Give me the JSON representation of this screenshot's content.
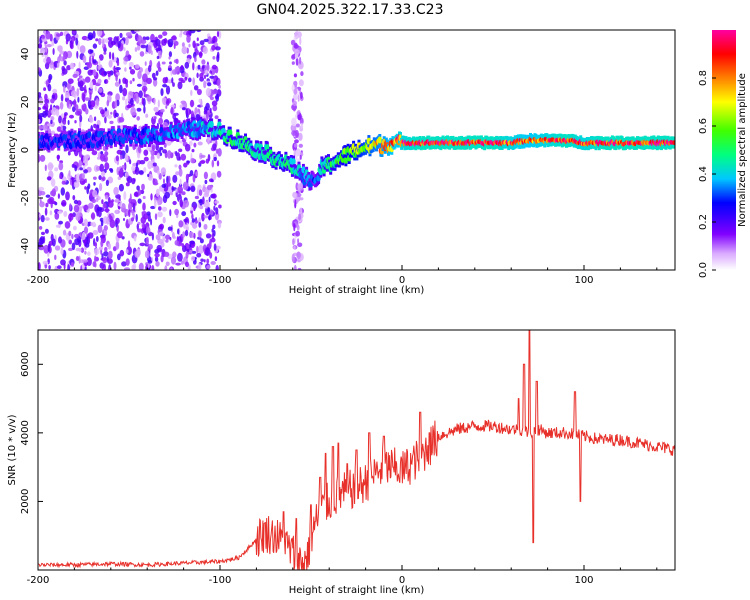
{
  "title": "GN04.2025.322.17.33.C23",
  "chart_data": [
    {
      "type": "heatmap",
      "title": "GN04.2025.322.17.33.C23",
      "xlabel": "Height of straight line (km)",
      "ylabel": "Frequency (Hz)",
      "xlim": [
        -200,
        150
      ],
      "ylim": [
        -50,
        50
      ],
      "xticks": [
        -200,
        -100,
        0,
        100
      ],
      "yticks": [
        -40,
        -20,
        0,
        20,
        40
      ],
      "colorbar": {
        "label": "Normalized spectral amplitude",
        "range": [
          0,
          1
        ],
        "ticks": [
          0.0,
          0.2,
          0.4,
          0.6,
          0.8
        ]
      },
      "ridge": {
        "x": [
          -200,
          -180,
          -160,
          -140,
          -120,
          -110,
          -100,
          -95,
          -90,
          -85,
          -80,
          -75,
          -70,
          -65,
          -60,
          -55,
          -50,
          -48,
          -45,
          -40,
          -35,
          -30,
          -25,
          -20,
          -15,
          -10,
          -5,
          0,
          10,
          30,
          50,
          60,
          70,
          80,
          90,
          100,
          110,
          120,
          150
        ],
        "y": [
          3,
          4,
          5,
          6,
          8,
          9,
          8,
          6,
          4,
          2,
          0,
          -1,
          -3,
          -5,
          -7,
          -10,
          -13,
          -15,
          -8,
          -6,
          -4,
          -2,
          0,
          1,
          2,
          2,
          3,
          3,
          3,
          3,
          3,
          3,
          4,
          4,
          4,
          3,
          3,
          3,
          3
        ],
        "amplitude": [
          0.3,
          0.3,
          0.3,
          0.35,
          0.35,
          0.4,
          0.45,
          0.5,
          0.5,
          0.5,
          0.45,
          0.45,
          0.5,
          0.5,
          0.45,
          0.4,
          0.35,
          0.3,
          0.45,
          0.5,
          0.55,
          0.6,
          0.65,
          0.7,
          0.75,
          0.8,
          0.85,
          0.9,
          0.95,
          0.95,
          0.95,
          0.9,
          0.85,
          0.9,
          0.95,
          0.9,
          0.95,
          0.95,
          0.95
        ]
      },
      "noise_regions": [
        {
          "x_range": [
            -200,
            -100
          ],
          "y_range": [
            -50,
            50
          ],
          "amplitude": 0.12
        },
        {
          "x_range": [
            -60,
            -55
          ],
          "y_range": [
            -50,
            50
          ],
          "amplitude": 0.08
        }
      ]
    },
    {
      "type": "line",
      "xlabel": "Height of straight line (km)",
      "ylabel": "SNR (10 * v/v)",
      "xlim": [
        -200,
        150
      ],
      "ylim": [
        0,
        7000
      ],
      "xticks": [
        -200,
        -100,
        0,
        100
      ],
      "yticks": [
        2000,
        4000,
        6000
      ],
      "series": [
        {
          "name": "SNR",
          "color": "#e8302a",
          "x": [
            -200,
            -180,
            -160,
            -140,
            -120,
            -100,
            -90,
            -85,
            -80,
            -75,
            -70,
            -65,
            -60,
            -55,
            -52,
            -50,
            -48,
            -45,
            -42,
            -40,
            -35,
            -30,
            -25,
            -20,
            -15,
            -10,
            -5,
            0,
            5,
            10,
            15,
            20,
            30,
            40,
            50,
            60,
            65,
            70,
            75,
            80,
            90,
            100,
            110,
            120,
            130,
            140,
            150
          ],
          "y": [
            150,
            150,
            180,
            150,
            200,
            250,
            350,
            600,
            900,
            1100,
            1000,
            800,
            500,
            200,
            400,
            900,
            1300,
            1700,
            1900,
            2000,
            2200,
            2300,
            2400,
            2550,
            2800,
            3000,
            3000,
            2900,
            3100,
            3300,
            3600,
            3900,
            4100,
            4200,
            4200,
            4100,
            4100,
            4000,
            4100,
            4000,
            4000,
            3900,
            3800,
            3800,
            3700,
            3600,
            3500
          ],
          "spikes": [
            {
              "x": -65,
              "y": 1700
            },
            {
              "x": -58,
              "y": 1500
            },
            {
              "x": -50,
              "y": 1900
            },
            {
              "x": -45,
              "y": 2700
            },
            {
              "x": -42,
              "y": 3400
            },
            {
              "x": -38,
              "y": 3600
            },
            {
              "x": -35,
              "y": 3700
            },
            {
              "x": -30,
              "y": 3100
            },
            {
              "x": -25,
              "y": 3500
            },
            {
              "x": -18,
              "y": 4000
            },
            {
              "x": -10,
              "y": 3900
            },
            {
              "x": -5,
              "y": 3000
            },
            {
              "x": 10,
              "y": 4600
            },
            {
              "x": 15,
              "y": 4000
            },
            {
              "x": 64,
              "y": 5000
            },
            {
              "x": 67,
              "y": 6000
            },
            {
              "x": 70,
              "y": 7000
            },
            {
              "x": 72,
              "y": 800
            },
            {
              "x": 74,
              "y": 5500
            },
            {
              "x": 95,
              "y": 5200
            },
            {
              "x": 98,
              "y": 2000
            }
          ]
        }
      ]
    }
  ]
}
